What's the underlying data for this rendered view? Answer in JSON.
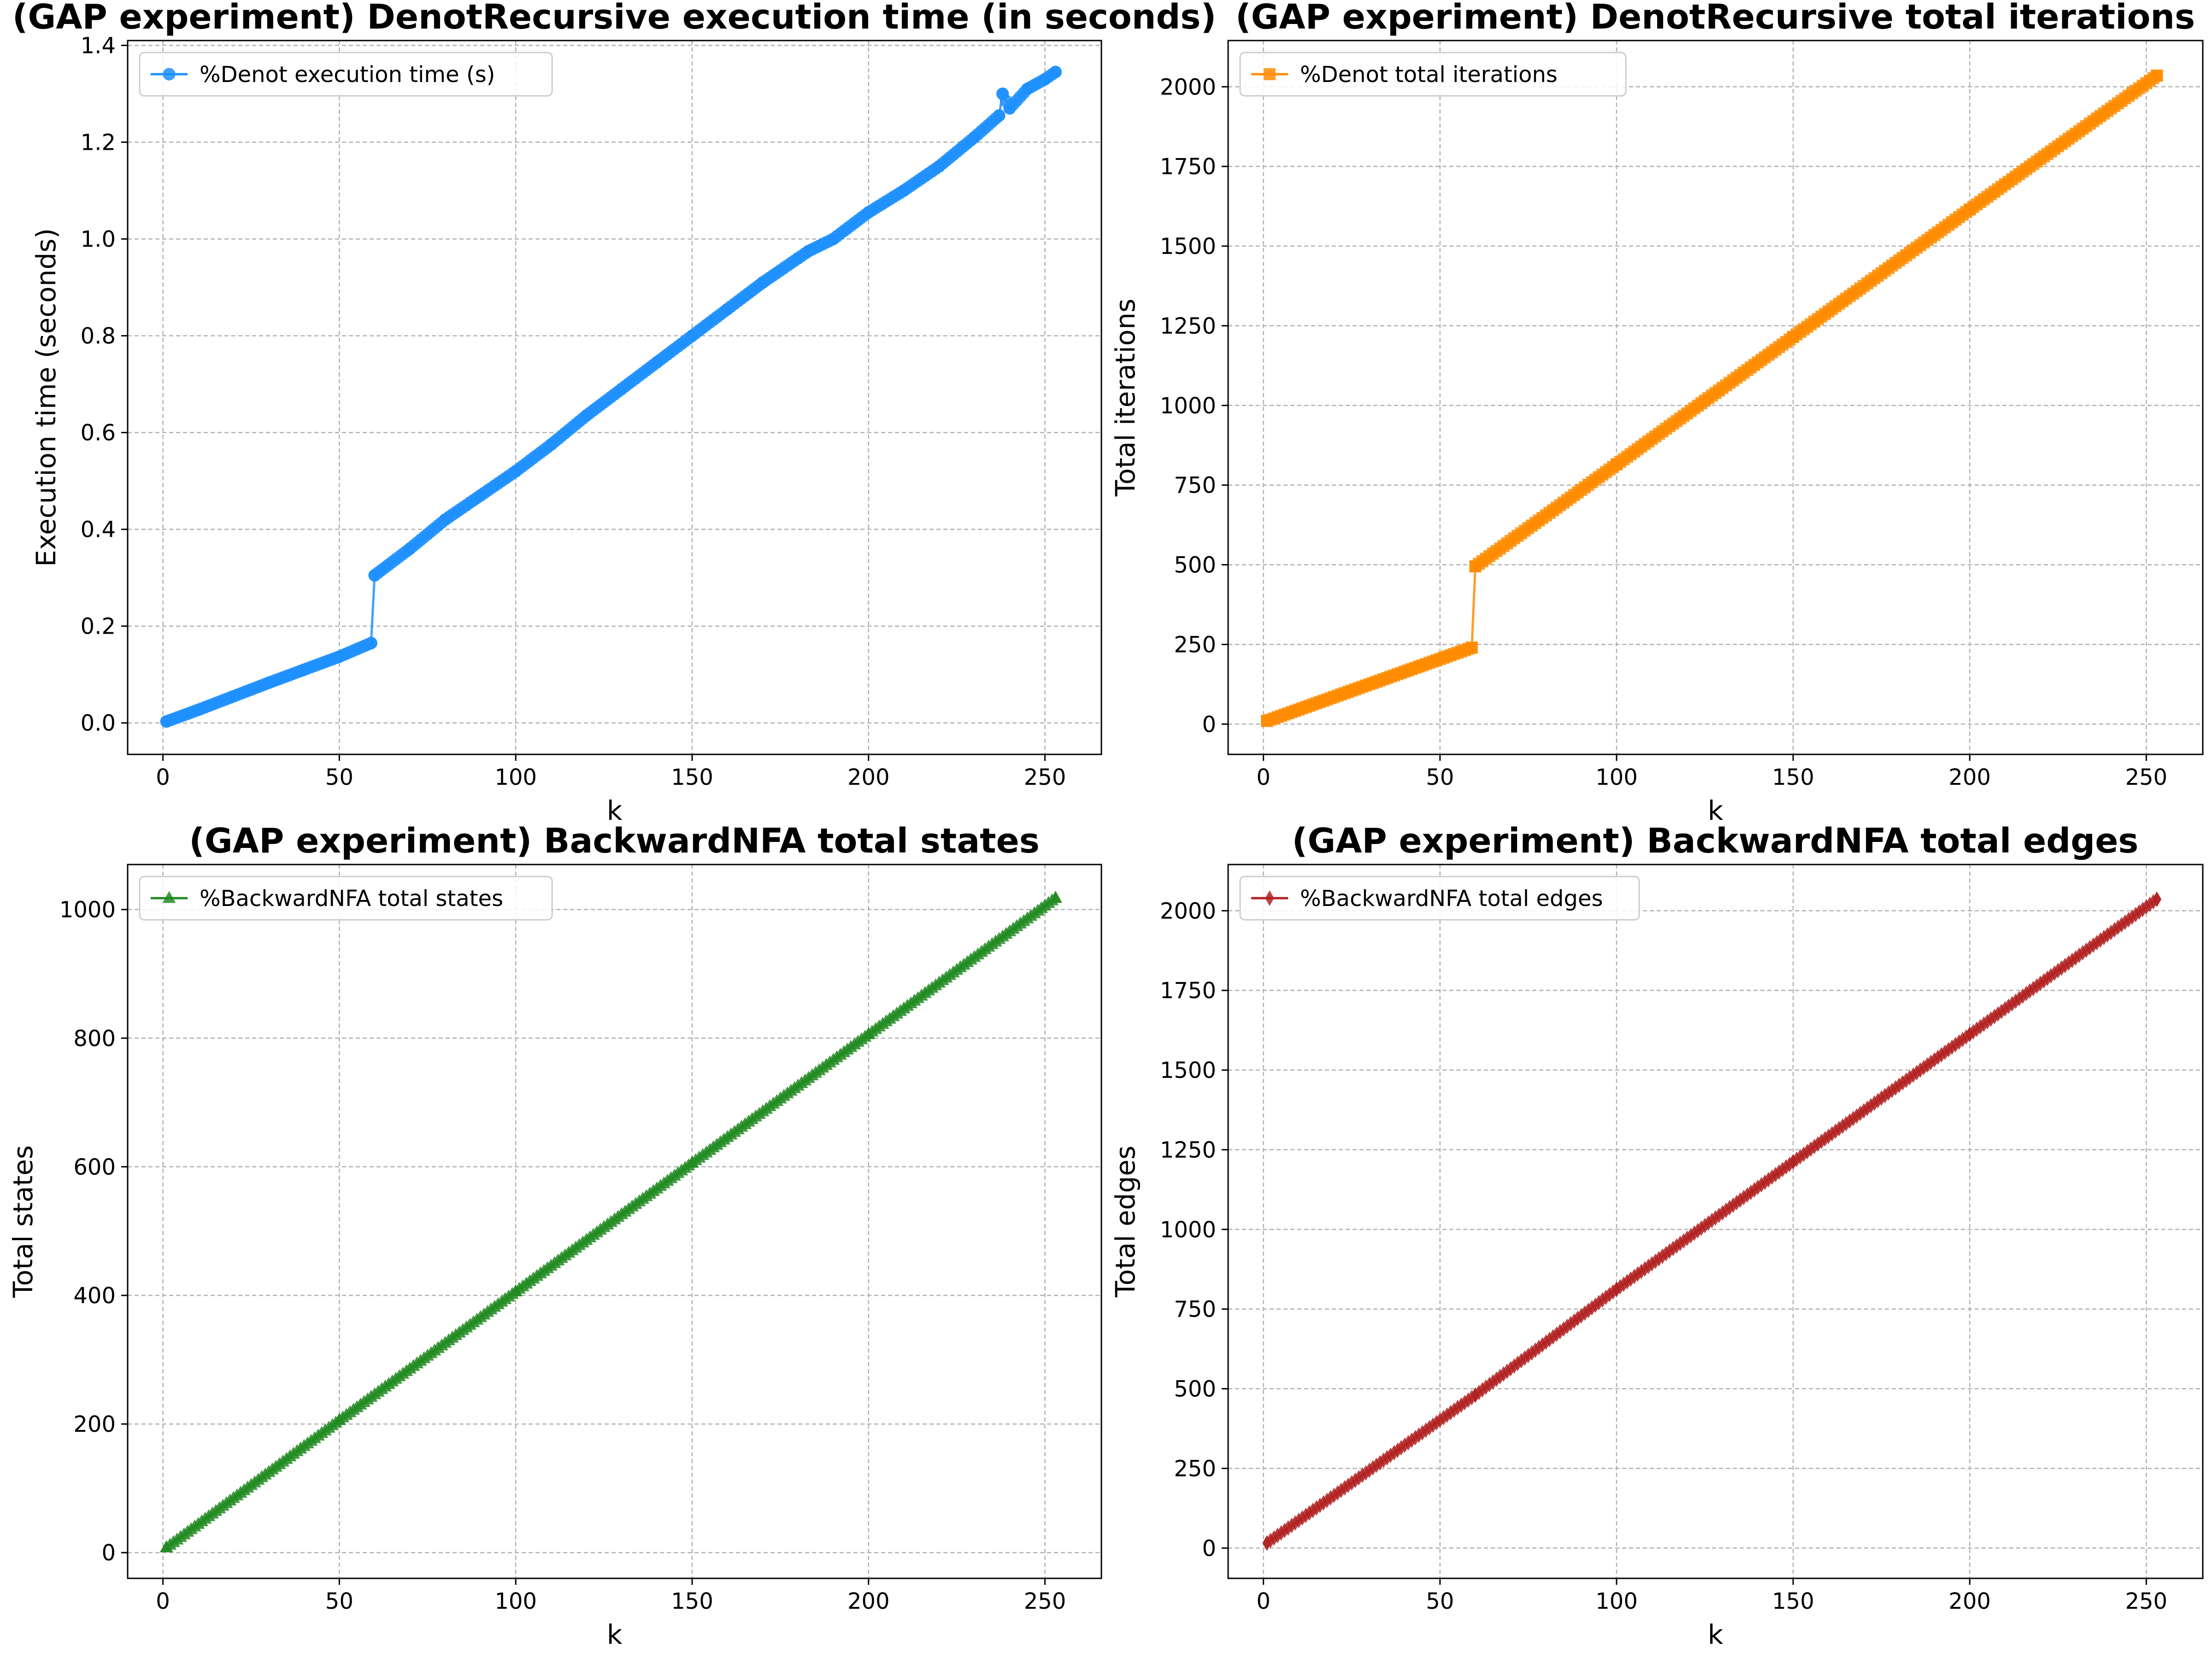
{
  "chart_data": [
    {
      "type": "line",
      "title": "(GAP experiment) DenotRecursive execution time (in seconds)",
      "xlabel": "k",
      "ylabel": "Execution time (seconds)",
      "xlim": [
        -10,
        266
      ],
      "ylim": [
        -0.065,
        1.41
      ],
      "xticks": [
        0,
        50,
        100,
        150,
        200,
        250
      ],
      "yticks": [
        0.0,
        0.2,
        0.4,
        0.6,
        0.8,
        1.0,
        1.2,
        1.4
      ],
      "ytick_labels": [
        "0.0",
        "0.2",
        "0.4",
        "0.6",
        "0.8",
        "1.0",
        "1.2",
        "1.4"
      ],
      "grid": true,
      "legend_position": "top-left",
      "series": [
        {
          "name": "%Denot execution time (s)",
          "color": "#1e90ff",
          "marker": "circle",
          "x": [
            1,
            10,
            20,
            30,
            40,
            50,
            59,
            60,
            70,
            80,
            90,
            100,
            110,
            120,
            130,
            140,
            150,
            160,
            170,
            180,
            183,
            190,
            200,
            210,
            220,
            230,
            237,
            238,
            240,
            245,
            250,
            253
          ],
          "y": [
            0.003,
            0.027,
            0.055,
            0.083,
            0.11,
            0.137,
            0.165,
            0.305,
            0.36,
            0.42,
            0.47,
            0.52,
            0.575,
            0.635,
            0.69,
            0.745,
            0.8,
            0.855,
            0.91,
            0.96,
            0.975,
            1.0,
            1.055,
            1.1,
            1.15,
            1.21,
            1.255,
            1.3,
            1.27,
            1.31,
            1.33,
            1.345
          ]
        }
      ]
    },
    {
      "type": "line",
      "title": "(GAP experiment) DenotRecursive total iterations",
      "xlabel": "k",
      "ylabel": "Total iterations",
      "xlim": [
        -10,
        266
      ],
      "ylim": [
        -95,
        2145
      ],
      "xticks": [
        0,
        50,
        100,
        150,
        200,
        250
      ],
      "yticks": [
        0,
        250,
        500,
        750,
        1000,
        1250,
        1500,
        1750,
        2000
      ],
      "ytick_labels": [
        "0",
        "250",
        "500",
        "750",
        "1000",
        "1250",
        "1500",
        "1750",
        "2000"
      ],
      "grid": true,
      "legend_position": "top-left",
      "series": [
        {
          "name": "%Denot total iterations",
          "color": "#ff8c00",
          "marker": "square",
          "x": [
            1,
            59,
            60,
            100,
            150,
            200,
            253
          ],
          "y": [
            10,
            240,
            495,
            815,
            1215,
            1615,
            2035
          ]
        }
      ]
    },
    {
      "type": "line",
      "title": "(GAP experiment) BackwardNFA total states",
      "xlabel": "k",
      "ylabel": "Total states",
      "xlim": [
        -10,
        266
      ],
      "ylim": [
        -40,
        1070
      ],
      "xticks": [
        0,
        50,
        100,
        150,
        200,
        250
      ],
      "yticks": [
        0,
        200,
        400,
        600,
        800,
        1000
      ],
      "ytick_labels": [
        "0",
        "200",
        "400",
        "600",
        "800",
        "1000"
      ],
      "grid": true,
      "legend_position": "top-left",
      "series": [
        {
          "name": "%BackwardNFA total states",
          "color": "#228b22",
          "marker": "triangle",
          "x": [
            1,
            50,
            100,
            150,
            200,
            253
          ],
          "y": [
            8,
            206,
            406,
            606,
            806,
            1018
          ]
        }
      ]
    },
    {
      "type": "line",
      "title": "(GAP experiment) BackwardNFA total edges",
      "xlabel": "k",
      "ylabel": "Total edges",
      "xlim": [
        -10,
        266
      ],
      "ylim": [
        -95,
        2145
      ],
      "xticks": [
        0,
        50,
        100,
        150,
        200,
        250
      ],
      "yticks": [
        0,
        250,
        500,
        750,
        1000,
        1250,
        1500,
        1750,
        2000
      ],
      "ytick_labels": [
        "0",
        "250",
        "500",
        "750",
        "1000",
        "1250",
        "1500",
        "1750",
        "2000"
      ],
      "grid": true,
      "legend_position": "top-left",
      "series": [
        {
          "name": "%BackwardNFA total edges",
          "color": "#b22222",
          "marker": "diamond",
          "x": [
            1,
            60,
            100,
            150,
            200,
            253
          ],
          "y": [
            16,
            480,
            812,
            1212,
            1612,
            2036
          ]
        }
      ]
    }
  ]
}
